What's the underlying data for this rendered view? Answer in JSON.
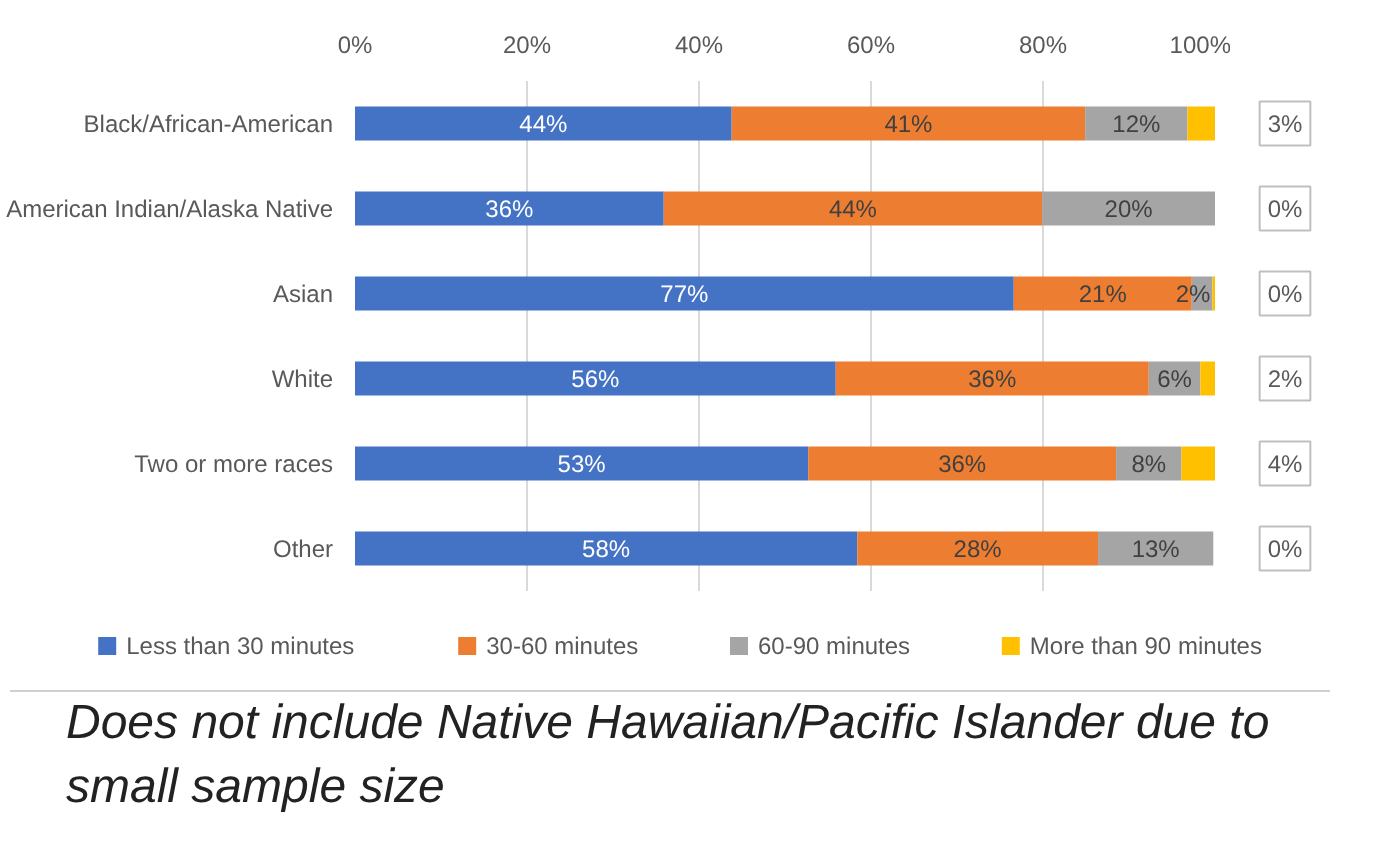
{
  "chart_data": {
    "type": "bar",
    "orientation": "horizontal",
    "stacked": true,
    "categories": [
      "Black/African-American",
      "American Indian/Alaska Native",
      "Asian",
      "White",
      "Two or more races",
      "Other"
    ],
    "series": [
      {
        "name": "Less than 30 minutes",
        "color": "#4472c4",
        "values": [
          43.8,
          35.9,
          76.6,
          55.9,
          52.7,
          58.4
        ],
        "value_labels": [
          "44%",
          "36%",
          "77%",
          "56%",
          "53%",
          "58%"
        ]
      },
      {
        "name": "30-60 minutes",
        "color": "#ed7d31",
        "values": [
          41.1,
          44.0,
          20.7,
          36.4,
          35.8,
          28.0
        ],
        "value_labels": [
          "41%",
          "44%",
          "21%",
          "36%",
          "36%",
          "28%"
        ]
      },
      {
        "name": "60-90 minutes",
        "color": "#a5a5a5",
        "values": [
          11.9,
          20.1,
          2.4,
          6.0,
          7.6,
          13.4
        ],
        "value_labels": [
          "12%",
          "20%",
          "2%",
          "6%",
          "8%",
          "13%"
        ]
      },
      {
        "name": "More than 90 minutes",
        "color": "#ffc000",
        "values": [
          3.2,
          0,
          0.3,
          1.7,
          3.9,
          0
        ],
        "value_labels": [
          "3%",
          "0%",
          "0%",
          "2%",
          "4%",
          "0%"
        ]
      }
    ],
    "xlim": [
      0,
      100
    ],
    "xticks": [
      {
        "value": 0,
        "label": "0%"
      },
      {
        "value": 20,
        "label": "20%"
      },
      {
        "value": 40,
        "label": "40%"
      },
      {
        "value": 60,
        "label": "60%"
      },
      {
        "value": 80,
        "label": "80%"
      },
      {
        "value": 100,
        "label": "100%"
      }
    ],
    "grid": "x",
    "legend": "bottom",
    "annotations": [
      "Does not include Native Hawaiian/Pacific Islander due to small sample size"
    ]
  }
}
